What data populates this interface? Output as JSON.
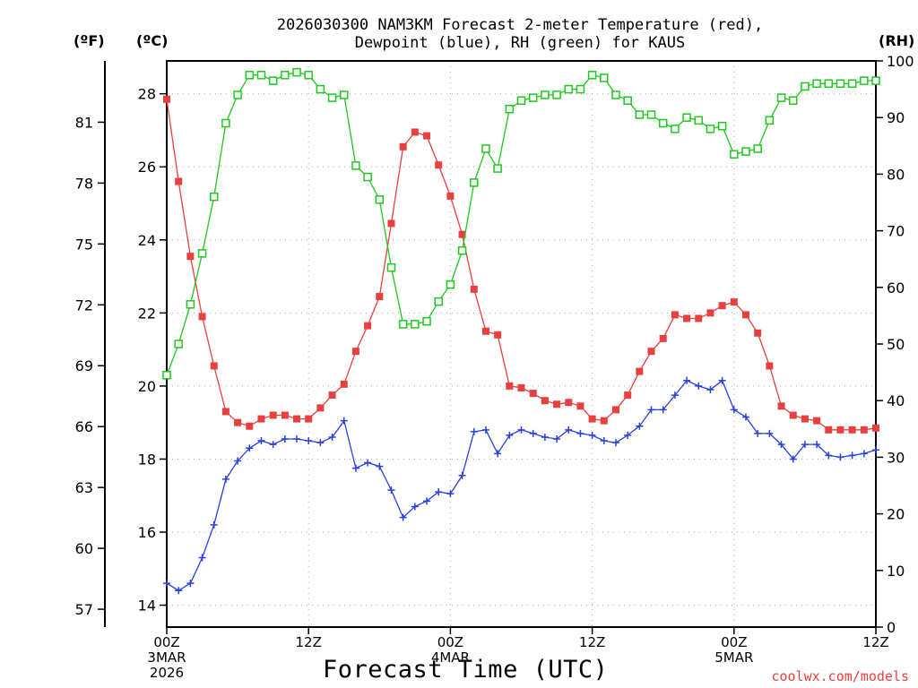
{
  "chart_data": {
    "type": "line",
    "title_line1": "2026030300 NAM3KM Forecast 2-meter Temperature (red),",
    "title_line2": "Dewpoint (blue), RH (green) for KAUS",
    "xlabel": "Forecast Time (UTC)",
    "credit": "coolwx.com/models",
    "units": {
      "fahrenheit": "(ºF)",
      "celsius": "(ºC)",
      "rh": "(RH)"
    },
    "x_hours_range": [
      0,
      60
    ],
    "ylim_c": [
      13.4,
      28.9
    ],
    "ylim_rh": [
      0,
      100
    ],
    "celsius_ticks": [
      "14",
      "16",
      "18",
      "20",
      "22",
      "24",
      "26",
      "28"
    ],
    "fahrenheit_ticks": [
      "57",
      "60",
      "63",
      "66",
      "69",
      "72",
      "75",
      "78",
      "81"
    ],
    "rh_ticks": [
      "0",
      "10",
      "20",
      "30",
      "40",
      "50",
      "60",
      "70",
      "80",
      "90",
      "100"
    ],
    "x_ticks": [
      {
        "hour": 0,
        "line1": "00Z",
        "line2": "3MAR",
        "line3": "2026"
      },
      {
        "hour": 12,
        "line1": "12Z",
        "line2": "",
        "line3": ""
      },
      {
        "hour": 24,
        "line1": "00Z",
        "line2": "4MAR",
        "line3": ""
      },
      {
        "hour": 36,
        "line1": "12Z",
        "line2": "",
        "line3": ""
      },
      {
        "hour": 48,
        "line1": "00Z",
        "line2": "5MAR",
        "line3": ""
      },
      {
        "hour": 60,
        "line1": "12Z",
        "line2": "",
        "line3": ""
      }
    ],
    "series": [
      {
        "name": "2-meter Temperature (°C)",
        "color": "#e8403e",
        "marker": "filled-square",
        "values": [
          27.85,
          25.6,
          23.55,
          21.9,
          20.55,
          19.3,
          19.0,
          18.9,
          19.1,
          19.2,
          19.2,
          19.1,
          19.1,
          19.4,
          19.75,
          20.05,
          20.95,
          21.65,
          22.45,
          24.45,
          26.55,
          26.95,
          26.85,
          26.05,
          25.2,
          24.15,
          22.65,
          21.5,
          21.4,
          20.0,
          19.95,
          19.8,
          19.6,
          19.5,
          19.55,
          19.45,
          19.1,
          19.05,
          19.35,
          19.75,
          20.4,
          20.95,
          21.3,
          21.95,
          21.85,
          21.85,
          22.0,
          22.2,
          22.3,
          21.95,
          21.45,
          20.55,
          19.45,
          19.2,
          19.1,
          19.05,
          18.8,
          18.8,
          18.8,
          18.8,
          18.85
        ]
      },
      {
        "name": "Dewpoint (°C)",
        "color": "#2840e0",
        "marker": "plus",
        "values": [
          14.6,
          14.4,
          14.6,
          15.3,
          16.2,
          17.45,
          17.95,
          18.3,
          18.5,
          18.4,
          18.55,
          18.55,
          18.5,
          18.45,
          18.6,
          19.05,
          17.75,
          17.9,
          17.8,
          17.15,
          16.4,
          16.7,
          16.85,
          17.1,
          17.05,
          17.55,
          18.75,
          18.8,
          18.15,
          18.65,
          18.8,
          18.7,
          18.6,
          18.55,
          18.8,
          18.7,
          18.65,
          18.5,
          18.45,
          18.65,
          18.9,
          19.35,
          19.35,
          19.75,
          20.15,
          20.0,
          19.9,
          20.15,
          19.35,
          19.15,
          18.7,
          18.7,
          18.4,
          18.0,
          18.4,
          18.4,
          18.1,
          18.05,
          18.1,
          18.15,
          18.25
        ]
      },
      {
        "name": "Relative Humidity (%)",
        "color": "#1ec81e",
        "marker": "open-square",
        "values": [
          44.5,
          50.0,
          57.0,
          66.0,
          76.0,
          89.0,
          94.0,
          97.5,
          97.5,
          96.5,
          97.5,
          98.0,
          97.5,
          95.0,
          93.5,
          94.0,
          81.5,
          79.5,
          75.5,
          63.5,
          53.5,
          53.5,
          54.0,
          57.5,
          60.5,
          66.5,
          78.5,
          84.5,
          81.0,
          91.5,
          93.0,
          93.5,
          94.0,
          94.0,
          95.0,
          95.0,
          97.5,
          97.0,
          94.0,
          93.0,
          90.5,
          90.5,
          89.0,
          88.0,
          90.0,
          89.5,
          88.0,
          88.5,
          83.5,
          84.0,
          84.5,
          89.5,
          93.5,
          93.0,
          95.5,
          96.0,
          96.0,
          96.0,
          96.0,
          96.5,
          96.5
        ]
      }
    ]
  }
}
